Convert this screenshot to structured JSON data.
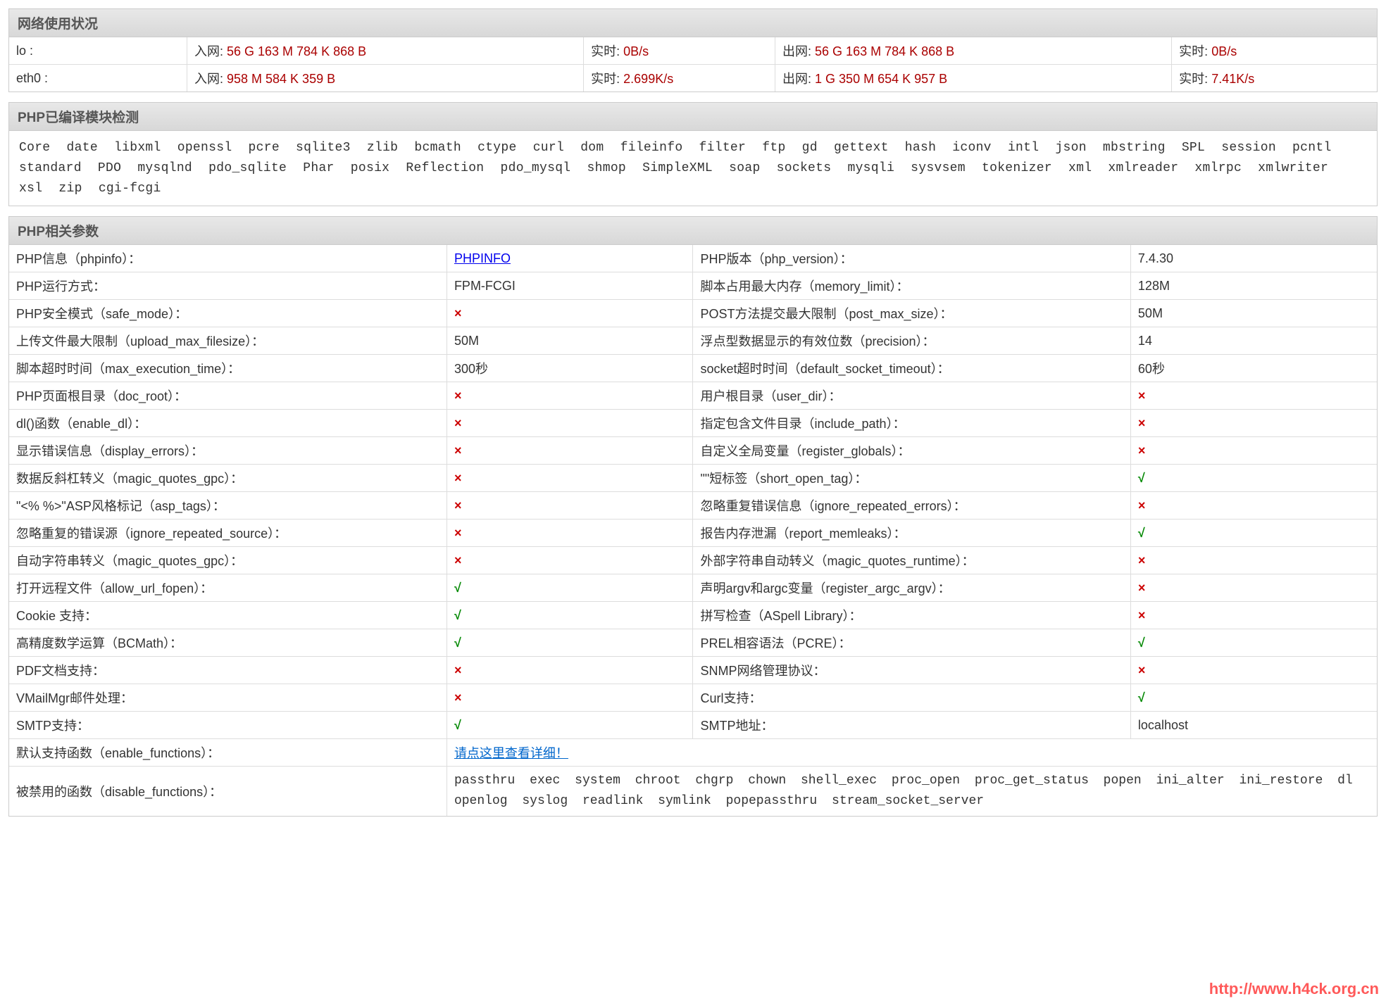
{
  "watermark": "http://www.h4ck.org.cn",
  "colors": {
    "red_value": "#aa0000",
    "green_check": "#008800",
    "red_x": "#cc0000",
    "link_blue": "#0066cc",
    "border": "#dddddd",
    "header_bg_top": "#e8e8e8",
    "header_bg_bottom": "#d8d8d8"
  },
  "panels": {
    "network": {
      "title": "网络使用状况",
      "rows": [
        {
          "iface": "lo :",
          "in_label": "入网:",
          "in_val": "56 G 163 M 784 K 868 B",
          "rt1_label": "实时:",
          "rt1_val": "0B/s",
          "out_label": "出网:",
          "out_val": "56 G 163 M 784 K 868 B",
          "rt2_label": "实时:",
          "rt2_val": "0B/s"
        },
        {
          "iface": "eth0 :",
          "in_label": "入网:",
          "in_val": "958 M 584 K 359 B",
          "rt1_label": "实时:",
          "rt1_val": "2.699K/s",
          "out_label": "出网:",
          "out_val": "1 G 350 M 654 K 957 B",
          "rt2_label": "实时:",
          "rt2_val": "7.41K/s"
        }
      ]
    },
    "modules": {
      "title": "PHP已编译模块检测",
      "list": "Core  date  libxml  openssl  pcre  sqlite3  zlib  bcmath  ctype  curl  dom  fileinfo  filter  ftp  gd  gettext  hash  iconv  intl  json  mbstring  SPL  session  pcntl  standard  PDO  mysqlnd  pdo_sqlite  Phar  posix  Reflection  pdo_mysql  shmop  SimpleXML  soap  sockets  mysqli  sysvsem  tokenizer  xml  xmlreader  xmlrpc  xmlwriter  xsl  zip  cgi-fcgi"
    },
    "php": {
      "title": "PHP相关参数",
      "symbols": {
        "check": "√",
        "cross": "×"
      },
      "phpinfo_link": "PHPINFO",
      "enable_functions_link": "请点这里查看详细！",
      "disabled_functions": "passthru  exec  system  chroot  chgrp  chown  shell_exec  proc_open  proc_get_status  popen  ini_alter  ini_restore  dl  openlog  syslog  readlink  symlink  popepassthru  stream_socket_server",
      "rows": [
        {
          "k1": "PHP信息（phpinfo）：",
          "v1_type": "link",
          "v1": "PHPINFO",
          "k2": "PHP版本（php_version）：",
          "v2_type": "text",
          "v2": "7.4.30"
        },
        {
          "k1": "PHP运行方式：",
          "v1_type": "text",
          "v1": "FPM-FCGI",
          "k2": "脚本占用最大内存（memory_limit）：",
          "v2_type": "text",
          "v2": "128M"
        },
        {
          "k1": "PHP安全模式（safe_mode）：",
          "v1_type": "cross",
          "v1": "×",
          "k2": "POST方法提交最大限制（post_max_size）：",
          "v2_type": "text",
          "v2": "50M"
        },
        {
          "k1": "上传文件最大限制（upload_max_filesize）：",
          "v1_type": "text",
          "v1": "50M",
          "k2": "浮点型数据显示的有效位数（precision）：",
          "v2_type": "text",
          "v2": "14"
        },
        {
          "k1": "脚本超时时间（max_execution_time）：",
          "v1_type": "text",
          "v1": "300秒",
          "k2": "socket超时时间（default_socket_timeout）：",
          "v2_type": "text",
          "v2": "60秒"
        },
        {
          "k1": "PHP页面根目录（doc_root）：",
          "v1_type": "cross",
          "v1": "×",
          "k2": "用户根目录（user_dir）：",
          "v2_type": "cross",
          "v2": "×"
        },
        {
          "k1": "dl()函数（enable_dl）：",
          "v1_type": "cross",
          "v1": "×",
          "k2": "指定包含文件目录（include_path）：",
          "v2_type": "cross",
          "v2": "×"
        },
        {
          "k1": "显示错误信息（display_errors）：",
          "v1_type": "cross",
          "v1": "×",
          "k2": "自定义全局变量（register_globals）：",
          "v2_type": "cross",
          "v2": "×"
        },
        {
          "k1": "数据反斜杠转义（magic_quotes_gpc）：",
          "v1_type": "cross",
          "v1": "×",
          "k2": "\"<?...?>\"短标签（short_open_tag）：",
          "v2_type": "check",
          "v2": "√"
        },
        {
          "k1": "\"<% %>\"ASP风格标记（asp_tags）：",
          "v1_type": "cross",
          "v1": "×",
          "k2": "忽略重复错误信息（ignore_repeated_errors）：",
          "v2_type": "cross",
          "v2": "×"
        },
        {
          "k1": "忽略重复的错误源（ignore_repeated_source）：",
          "v1_type": "cross",
          "v1": "×",
          "k2": "报告内存泄漏（report_memleaks）：",
          "v2_type": "check",
          "v2": "√"
        },
        {
          "k1": "自动字符串转义（magic_quotes_gpc）：",
          "v1_type": "cross",
          "v1": "×",
          "k2": "外部字符串自动转义（magic_quotes_runtime）：",
          "v2_type": "cross",
          "v2": "×"
        },
        {
          "k1": "打开远程文件（allow_url_fopen）：",
          "v1_type": "check",
          "v1": "√",
          "k2": "声明argv和argc变量（register_argc_argv）：",
          "v2_type": "cross",
          "v2": "×"
        },
        {
          "k1": "Cookie 支持：",
          "v1_type": "check",
          "v1": "√",
          "k2": "拼写检查（ASpell Library）：",
          "v2_type": "cross",
          "v2": "×"
        },
        {
          "k1": "高精度数学运算（BCMath）：",
          "v1_type": "check",
          "v1": "√",
          "k2": "PREL相容语法（PCRE）：",
          "v2_type": "check",
          "v2": "√"
        },
        {
          "k1": "PDF文档支持：",
          "v1_type": "cross",
          "v1": "×",
          "k2": "SNMP网络管理协议：",
          "v2_type": "cross",
          "v2": "×"
        },
        {
          "k1": "VMailMgr邮件处理：",
          "v1_type": "cross",
          "v1": "×",
          "k2": "Curl支持：",
          "v2_type": "check",
          "v2": "√"
        },
        {
          "k1": "SMTP支持：",
          "v1_type": "check",
          "v1": "√",
          "k2": "SMTP地址：",
          "v2_type": "text",
          "v2": "localhost"
        }
      ],
      "footer": [
        {
          "k": "默认支持函数（enable_functions）：",
          "type": "link"
        },
        {
          "k": "被禁用的函数（disable_functions）：",
          "type": "disabled"
        }
      ]
    }
  }
}
